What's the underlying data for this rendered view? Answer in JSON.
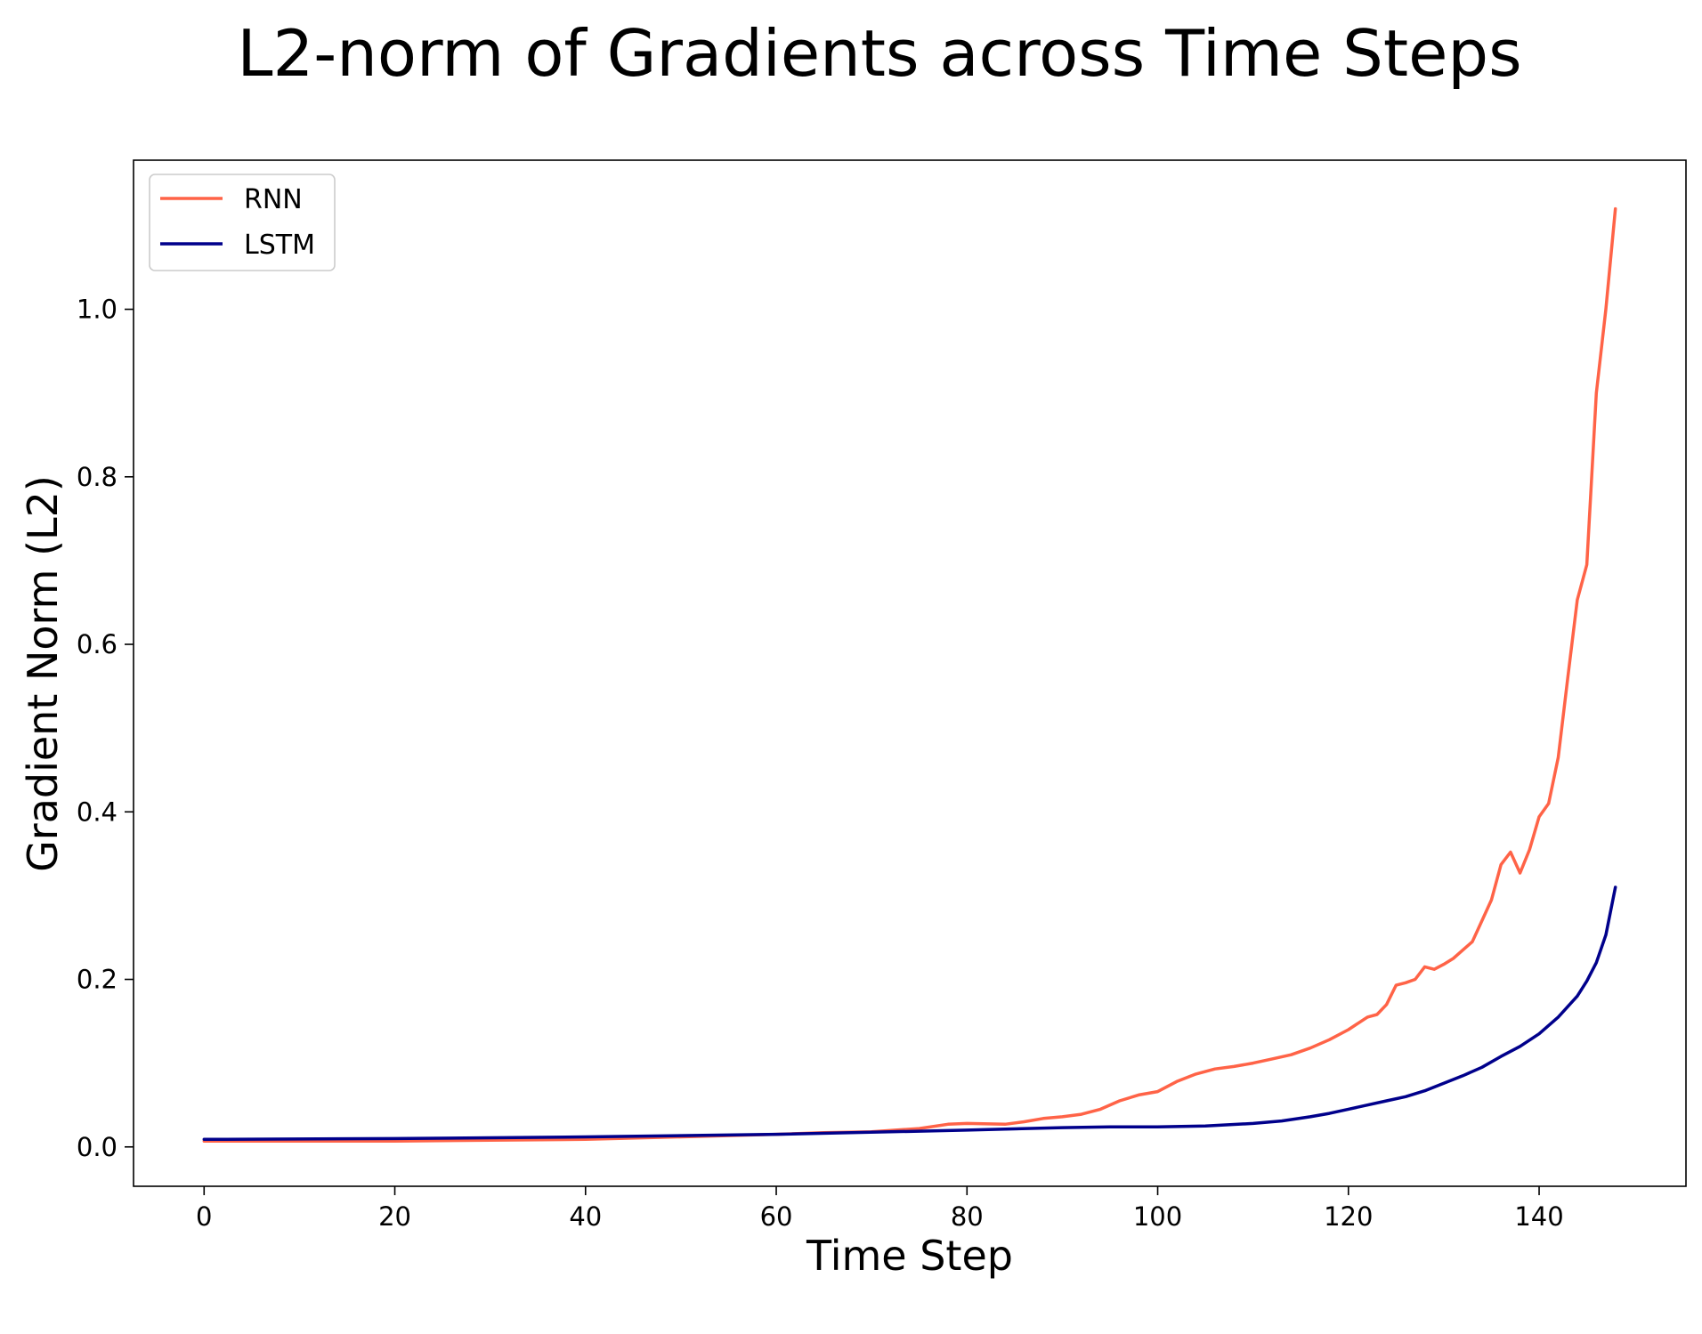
{
  "chart_data": {
    "type": "line",
    "title": "L2-norm of Gradients across Time Steps",
    "xlabel": "Time Step",
    "ylabel": "Gradient Norm (L2)",
    "xlim": [
      -7.4,
      155.4
    ],
    "ylim": [
      -0.047,
      1.178
    ],
    "xticks": [
      0,
      20,
      40,
      60,
      80,
      100,
      120,
      140
    ],
    "yticks": [
      0.0,
      0.2,
      0.4,
      0.6,
      0.8,
      1.0
    ],
    "xtick_labels": [
      "0",
      "20",
      "40",
      "60",
      "80",
      "100",
      "120",
      "140"
    ],
    "ytick_labels": [
      "0.0",
      "0.2",
      "0.4",
      "0.6",
      "0.8",
      "1.0"
    ],
    "grid": false,
    "legend_position": "top-left",
    "series": [
      {
        "name": "RNN",
        "color": "#ff6347",
        "points": [
          [
            0,
            0.007
          ],
          [
            10,
            0.007
          ],
          [
            20,
            0.007
          ],
          [
            30,
            0.008
          ],
          [
            40,
            0.009
          ],
          [
            50,
            0.012
          ],
          [
            60,
            0.015
          ],
          [
            65,
            0.017
          ],
          [
            70,
            0.018
          ],
          [
            75,
            0.022
          ],
          [
            78,
            0.027
          ],
          [
            80,
            0.028
          ],
          [
            84,
            0.027
          ],
          [
            86,
            0.03
          ],
          [
            88,
            0.034
          ],
          [
            90,
            0.036
          ],
          [
            92,
            0.039
          ],
          [
            94,
            0.045
          ],
          [
            96,
            0.055
          ],
          [
            98,
            0.062
          ],
          [
            100,
            0.066
          ],
          [
            102,
            0.078
          ],
          [
            104,
            0.087
          ],
          [
            106,
            0.093
          ],
          [
            108,
            0.096
          ],
          [
            110,
            0.1
          ],
          [
            112,
            0.105
          ],
          [
            114,
            0.11
          ],
          [
            116,
            0.118
          ],
          [
            118,
            0.128
          ],
          [
            120,
            0.14
          ],
          [
            122,
            0.155
          ],
          [
            123,
            0.158
          ],
          [
            124,
            0.17
          ],
          [
            125,
            0.193
          ],
          [
            126,
            0.196
          ],
          [
            127,
            0.2
          ],
          [
            128,
            0.215
          ],
          [
            129,
            0.212
          ],
          [
            130,
            0.218
          ],
          [
            131,
            0.225
          ],
          [
            132,
            0.235
          ],
          [
            133,
            0.245
          ],
          [
            134,
            0.27
          ],
          [
            135,
            0.295
          ],
          [
            136,
            0.337
          ],
          [
            137,
            0.352
          ],
          [
            138,
            0.327
          ],
          [
            139,
            0.355
          ],
          [
            140,
            0.394
          ],
          [
            141,
            0.41
          ],
          [
            142,
            0.465
          ],
          [
            143,
            0.56
          ],
          [
            144,
            0.653
          ],
          [
            145,
            0.695
          ],
          [
            146,
            0.9
          ],
          [
            147,
            1.0
          ],
          [
            148,
            1.12
          ]
        ]
      },
      {
        "name": "LSTM",
        "color": "#00008b",
        "points": [
          [
            0,
            0.009
          ],
          [
            20,
            0.01
          ],
          [
            40,
            0.012
          ],
          [
            60,
            0.015
          ],
          [
            80,
            0.02
          ],
          [
            90,
            0.023
          ],
          [
            95,
            0.024
          ],
          [
            100,
            0.024
          ],
          [
            105,
            0.025
          ],
          [
            110,
            0.028
          ],
          [
            113,
            0.031
          ],
          [
            116,
            0.036
          ],
          [
            118,
            0.04
          ],
          [
            120,
            0.045
          ],
          [
            122,
            0.05
          ],
          [
            124,
            0.055
          ],
          [
            126,
            0.06
          ],
          [
            128,
            0.067
          ],
          [
            130,
            0.076
          ],
          [
            132,
            0.085
          ],
          [
            134,
            0.095
          ],
          [
            136,
            0.108
          ],
          [
            138,
            0.12
          ],
          [
            140,
            0.135
          ],
          [
            142,
            0.155
          ],
          [
            144,
            0.18
          ],
          [
            145,
            0.198
          ],
          [
            146,
            0.22
          ],
          [
            147,
            0.253
          ],
          [
            148,
            0.31
          ]
        ]
      }
    ]
  }
}
